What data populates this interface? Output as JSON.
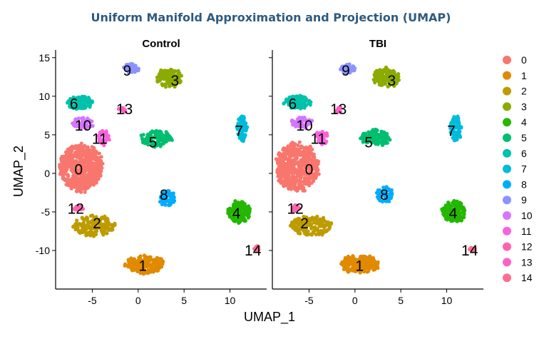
{
  "chart_data": {
    "type": "scatter",
    "title": "Uniform Manifold Approximation and Projection (UMAP)",
    "xlabel": "UMAP_1",
    "ylabel": "UMAP_2",
    "panels": [
      "Control",
      "TBI"
    ],
    "xlim": [
      -9,
      14
    ],
    "ylim": [
      -15,
      16
    ],
    "xticks": [
      -5,
      0,
      5,
      10
    ],
    "yticks": [
      15,
      10,
      5,
      0,
      -5,
      -10
    ],
    "xtick_labels": [
      "-5",
      "0",
      "5",
      "10"
    ],
    "ytick_labels": [
      "15",
      "10",
      "5",
      "0",
      "-5",
      "-10"
    ],
    "legend_position": "right",
    "grid": false,
    "clusters": [
      {
        "name": "0",
        "color": "#F8766D",
        "label": {
          "Control": [
            -6.5,
            0.5
          ],
          "TBI": [
            -5.0,
            0.5
          ]
        },
        "centroid": {
          "Control": [
            -6.2,
            0.8
          ],
          "TBI": [
            -6.3,
            0.8
          ]
        },
        "spread": [
          2.5,
          3.3
        ],
        "n": 500
      },
      {
        "name": "1",
        "color": "#E18A00",
        "label": {
          "Control": [
            0.5,
            -12.0
          ],
          "TBI": [
            0.5,
            -12.0
          ]
        },
        "centroid": {
          "Control": [
            0.8,
            -11.8
          ],
          "TBI": [
            0.5,
            -11.8
          ]
        },
        "spread": [
          2.3,
          1.2
        ],
        "n": 200
      },
      {
        "name": "2",
        "color": "#BE9C00",
        "label": {
          "Control": [
            -4.5,
            -6.5
          ],
          "TBI": [
            -5.5,
            -6.5
          ]
        },
        "centroid": {
          "Control": [
            -4.8,
            -6.8
          ],
          "TBI": [
            -4.8,
            -6.8
          ]
        },
        "spread": [
          2.4,
          1.4
        ],
        "n": 170
      },
      {
        "name": "3",
        "color": "#8CAB00",
        "label": {
          "Control": [
            4.0,
            12.0
          ],
          "TBI": [
            4.0,
            12.0
          ]
        },
        "centroid": {
          "Control": [
            3.4,
            12.4
          ],
          "TBI": [
            3.4,
            12.4
          ]
        },
        "spread": [
          1.5,
          1.3
        ],
        "n": 140
      },
      {
        "name": "4",
        "color": "#24B700",
        "label": {
          "Control": [
            10.7,
            -5.2
          ],
          "TBI": [
            10.7,
            -5.2
          ]
        },
        "centroid": {
          "Control": [
            11.0,
            -5.0
          ],
          "TBI": [
            10.8,
            -5.0
          ]
        },
        "spread": [
          1.3,
          1.5
        ],
        "n": 150
      },
      {
        "name": "5",
        "color": "#00BE70",
        "label": {
          "Control": [
            1.6,
            4.0
          ],
          "TBI": [
            1.5,
            4.0
          ]
        },
        "centroid": {
          "Control": [
            2.0,
            4.5
          ],
          "TBI": [
            2.3,
            4.6
          ]
        },
        "spread": [
          1.8,
          1.1
        ],
        "n": 120
      },
      {
        "name": "6",
        "color": "#00C1AB",
        "label": {
          "Control": [
            -7.0,
            9.0
          ],
          "TBI": [
            -6.8,
            9.0
          ]
        },
        "centroid": {
          "Control": [
            -6.5,
            9.2
          ],
          "TBI": [
            -6.3,
            9.2
          ]
        },
        "spread": [
          1.6,
          0.9
        ],
        "n": 120
      },
      {
        "name": "7",
        "color": "#00BBDA",
        "label": {
          "Control": [
            11.0,
            5.5
          ],
          "TBI": [
            10.5,
            5.5
          ]
        },
        "centroid": {
          "Control": [
            11.3,
            5.8
          ],
          "TBI": [
            11.0,
            5.8
          ]
        },
        "spread": [
          0.6,
          1.7
        ],
        "n": 90
      },
      {
        "name": "8",
        "color": "#00ACFC",
        "label": {
          "Control": [
            2.8,
            -2.8
          ],
          "TBI": [
            3.2,
            -2.8
          ]
        },
        "centroid": {
          "Control": [
            3.2,
            -3.2
          ],
          "TBI": [
            3.2,
            -2.7
          ]
        },
        "spread": [
          0.9,
          1.1
        ],
        "n": 70
      },
      {
        "name": "9",
        "color": "#8B93FF",
        "label": {
          "Control": [
            -1.2,
            13.3
          ],
          "TBI": [
            -1.0,
            13.3
          ]
        },
        "centroid": {
          "Control": [
            -0.8,
            13.6
          ],
          "TBI": [
            -0.8,
            13.6
          ]
        },
        "spread": [
          0.9,
          0.6
        ],
        "n": 60
      },
      {
        "name": "10",
        "color": "#D575FE",
        "label": {
          "Control": [
            -6.0,
            6.2
          ],
          "TBI": [
            -5.5,
            6.2
          ]
        },
        "centroid": {
          "Control": [
            -6.0,
            6.5
          ],
          "TBI": [
            -5.8,
            6.6
          ]
        },
        "spread": [
          1.2,
          0.8
        ],
        "n": 55
      },
      {
        "name": "11",
        "color": "#F962DD",
        "label": {
          "Control": [
            -4.2,
            4.5
          ],
          "TBI": [
            -4.0,
            4.5
          ]
        },
        "centroid": {
          "Control": [
            -3.8,
            4.6
          ],
          "TBI": [
            -3.6,
            4.6
          ]
        },
        "spread": [
          0.7,
          1.0
        ],
        "n": 40
      },
      {
        "name": "12",
        "color": "#FF65AC",
        "label": {
          "Control": [
            -6.8,
            -4.6
          ],
          "TBI": [
            -6.5,
            -4.6
          ]
        },
        "centroid": {
          "Control": [
            -6.5,
            -4.5
          ],
          "TBI": [
            -6.5,
            -4.5
          ]
        },
        "spread": [
          0.45,
          0.4
        ],
        "n": 20
      },
      {
        "name": "13",
        "color": "#FF61C3",
        "label": {
          "Control": [
            -1.5,
            8.3
          ],
          "TBI": [
            -1.8,
            8.3
          ]
        },
        "centroid": {
          "Control": [
            -1.8,
            8.2
          ],
          "TBI": [
            -1.8,
            8.2
          ]
        },
        "spread": [
          0.4,
          0.4
        ],
        "n": 18
      },
      {
        "name": "14",
        "color": "#FF6C91",
        "label": {
          "Control": [
            12.5,
            -10.0
          ],
          "TBI": [
            12.5,
            -10.0
          ]
        },
        "centroid": {
          "Control": [
            13.0,
            -9.8
          ],
          "TBI": [
            12.8,
            -9.8
          ]
        },
        "spread": [
          0.45,
          0.3
        ],
        "n": 15
      }
    ]
  }
}
